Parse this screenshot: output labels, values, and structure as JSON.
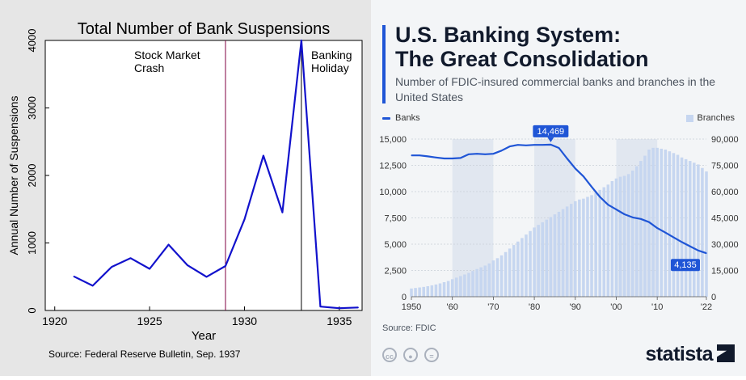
{
  "left": {
    "title": "Total Number of Bank Suspensions",
    "xlabel": "Year",
    "ylabel": "Annual Number of Suspensions",
    "source": "Source: Federal Reserve Bulletin, Sep. 1937",
    "annotation_crash": [
      "Stock Market",
      "Crash"
    ],
    "annotation_holiday": [
      "Banking",
      "Holiday"
    ],
    "xticks": [
      "1920",
      "1925",
      "1930",
      "1935"
    ],
    "yticks": [
      "0",
      "1000",
      "2000",
      "3000",
      "4000"
    ],
    "line_color": "#1212cc"
  },
  "right": {
    "title_line1": "U.S. Banking System:",
    "title_line2": "The Great Consolidation",
    "subtitle": "Number of FDIC-insured commercial banks and branches in the United States",
    "legend_banks": "Banks",
    "legend_branches": "Branches",
    "xticks": [
      "1950",
      "'60",
      "'70",
      "'80",
      "'90",
      "'00",
      "'10",
      "'22"
    ],
    "left_ticks": [
      "0",
      "2,500",
      "5,000",
      "7,500",
      "10,000",
      "12,500",
      "15,000"
    ],
    "right_ticks": [
      "0",
      "15,000",
      "30,000",
      "45,000",
      "60,000",
      "75,000",
      "90,000"
    ],
    "callout_peak": "14,469",
    "callout_last": "4,135",
    "source": "Source: FDIC",
    "brand": "statista",
    "license_icons": [
      "cc-icon",
      "person-icon",
      "equal-icon"
    ],
    "accent_color": "#1f55d6",
    "bar_color": "#c6d6f0"
  },
  "chart_data": [
    {
      "type": "line",
      "title": "Total Number of Bank Suspensions",
      "xlabel": "Year",
      "ylabel": "Annual Number of Suspensions",
      "xlim": [
        1919.5,
        1936.2
      ],
      "ylim": [
        0,
        4000
      ],
      "grid": false,
      "x": [
        1921,
        1922,
        1923,
        1924,
        1925,
        1926,
        1927,
        1928,
        1929,
        1930,
        1931,
        1932,
        1933,
        1934,
        1935,
        1936
      ],
      "series": [
        {
          "values": [
            505,
            367,
            646,
            775,
            617,
            975,
            669,
            498,
            659,
            1350,
            2293,
            1453,
            4000,
            57,
            34,
            44
          ]
        }
      ],
      "annotations": [
        {
          "text": "Stock Market Crash",
          "x": 1929
        },
        {
          "text": "Banking Holiday",
          "x": 1933
        }
      ]
    },
    {
      "type": "bar",
      "title": "U.S. Banking System: The Great Consolidation",
      "subtitle": "Number of FDIC-insured commercial banks and branches in the United States",
      "xlim": [
        1950,
        2022
      ],
      "ylim_left": [
        0,
        15000
      ],
      "ylim_right": [
        0,
        90000
      ],
      "grid": true,
      "shaded_decades": [
        [
          1960,
          1970
        ],
        [
          1980,
          1990
        ],
        [
          2000,
          2010
        ]
      ],
      "years": [
        1950,
        1951,
        1952,
        1953,
        1954,
        1955,
        1956,
        1957,
        1958,
        1959,
        1960,
        1961,
        1962,
        1963,
        1964,
        1965,
        1966,
        1967,
        1968,
        1969,
        1970,
        1971,
        1972,
        1973,
        1974,
        1975,
        1976,
        1977,
        1978,
        1979,
        1980,
        1981,
        1982,
        1983,
        1984,
        1985,
        1986,
        1987,
        1988,
        1989,
        1990,
        1991,
        1992,
        1993,
        1994,
        1995,
        1996,
        1997,
        1998,
        1999,
        2000,
        2001,
        2002,
        2003,
        2004,
        2005,
        2006,
        2007,
        2008,
        2009,
        2010,
        2011,
        2012,
        2013,
        2014,
        2015,
        2016,
        2017,
        2018,
        2019,
        2020,
        2021,
        2022
      ],
      "series": [
        {
          "name": "Branches",
          "axis": "right",
          "values": [
            4700,
            5000,
            5300,
            5600,
            6000,
            6500,
            7000,
            7600,
            8300,
            9000,
            10000,
            10900,
            11800,
            12700,
            13600,
            14700,
            15800,
            16800,
            17800,
            19000,
            20700,
            22000,
            23600,
            25500,
            27500,
            29500,
            31500,
            33500,
            35500,
            37500,
            39500,
            41000,
            42500,
            44000,
            45500,
            47000,
            48500,
            50000,
            51500,
            53000,
            54500,
            55500,
            56000,
            57000,
            58000,
            59500,
            61000,
            62500,
            64000,
            66000,
            67500,
            68500,
            69000,
            70000,
            72000,
            74500,
            77500,
            80500,
            84000,
            85000,
            85000,
            84500,
            84000,
            83000,
            82000,
            81000,
            79500,
            78500,
            77500,
            76500,
            75500,
            73500,
            71500
          ]
        },
        {
          "name": "Banks",
          "axis": "left",
          "x": [
            1950,
            1952,
            1954,
            1956,
            1958,
            1960,
            1962,
            1964,
            1966,
            1968,
            1970,
            1972,
            1974,
            1976,
            1978,
            1980,
            1982,
            1984,
            1986,
            1988,
            1990,
            1992,
            1994,
            1996,
            1998,
            2000,
            2002,
            2004,
            2006,
            2008,
            2010,
            2012,
            2014,
            2016,
            2018,
            2020,
            2022
          ],
          "values": [
            13450,
            13450,
            13350,
            13250,
            13150,
            13150,
            13200,
            13550,
            13600,
            13550,
            13600,
            13900,
            14300,
            14450,
            14400,
            14450,
            14450,
            14469,
            14150,
            13150,
            12200,
            11450,
            10450,
            9500,
            8750,
            8300,
            7850,
            7550,
            7400,
            7100,
            6530,
            6100,
            5650,
            5200,
            4800,
            4400,
            4135
          ]
        }
      ],
      "callouts": [
        {
          "text": "14,469",
          "x": 1984
        },
        {
          "text": "4,135",
          "x": 2022
        }
      ],
      "source": "Source: FDIC"
    }
  ]
}
